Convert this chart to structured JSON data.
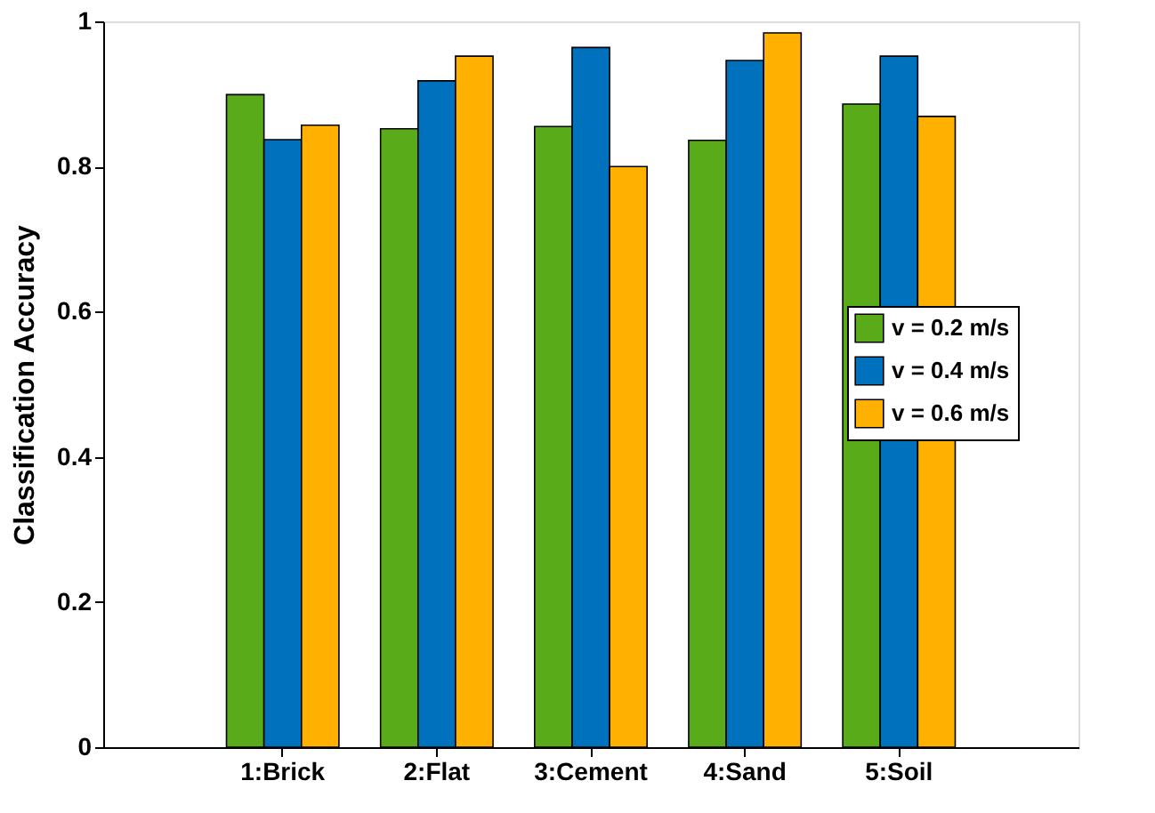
{
  "chart_data": {
    "type": "bar",
    "ylabel": "Classification Accuracy",
    "categories": [
      "1:Brick",
      "2:Flat",
      "3:Cement",
      "4:Sand",
      "5:Soil"
    ],
    "series": [
      {
        "name": "v = 0.2 m/s",
        "color": "#59ab1a",
        "values": [
          0.899,
          0.852,
          0.855,
          0.836,
          0.886
        ]
      },
      {
        "name": "v = 0.4 m/s",
        "color": "#0072bd",
        "values": [
          0.837,
          0.918,
          0.964,
          0.946,
          0.952
        ]
      },
      {
        "name": "v = 0.6 m/s",
        "color": "#ffb000",
        "values": [
          0.857,
          0.952,
          0.8,
          0.984,
          0.869
        ]
      }
    ],
    "ylim": [
      0,
      1
    ],
    "yticks": [
      0,
      0.2,
      0.4,
      0.6,
      0.8,
      1
    ],
    "grid": false,
    "legend": "right"
  }
}
